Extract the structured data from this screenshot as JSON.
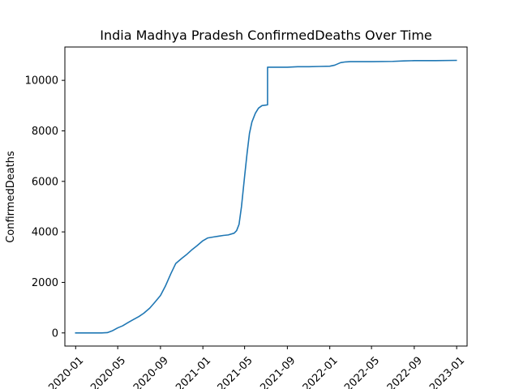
{
  "chart_data": {
    "type": "line",
    "title": "India Madhya Pradesh ConfirmedDeaths Over Time",
    "xlabel": "",
    "ylabel": "ConfirmedDeaths",
    "xlim": [
      "2019-12-01",
      "2023-01-31"
    ],
    "ylim": [
      -520,
      11320
    ],
    "x_ticks": [
      "2020-01",
      "2020-05",
      "2020-09",
      "2021-01",
      "2021-05",
      "2021-09",
      "2022-01",
      "2022-05",
      "2022-09",
      "2023-01"
    ],
    "y_ticks": [
      0,
      2000,
      4000,
      6000,
      8000,
      10000
    ],
    "y_tick_labels": [
      "0",
      "2000",
      "4000",
      "6000",
      "8000",
      "10000"
    ],
    "grid": false,
    "series": [
      {
        "color": "#1f77b4",
        "x": [
          "2020-01-01",
          "2020-02-01",
          "2020-03-01",
          "2020-03-15",
          "2020-04-01",
          "2020-04-15",
          "2020-05-01",
          "2020-05-15",
          "2020-06-01",
          "2020-06-15",
          "2020-07-01",
          "2020-07-15",
          "2020-08-01",
          "2020-08-15",
          "2020-09-01",
          "2020-09-15",
          "2020-10-01",
          "2020-10-15",
          "2020-11-01",
          "2020-11-15",
          "2020-12-01",
          "2020-12-15",
          "2021-01-01",
          "2021-01-15",
          "2021-02-01",
          "2021-02-15",
          "2021-03-01",
          "2021-03-15",
          "2021-04-01",
          "2021-04-08",
          "2021-04-15",
          "2021-04-22",
          "2021-05-01",
          "2021-05-08",
          "2021-05-15",
          "2021-05-22",
          "2021-06-01",
          "2021-06-10",
          "2021-06-20",
          "2021-07-01",
          "2021-07-06",
          "2021-07-06",
          "2021-08-01",
          "2021-09-01",
          "2021-10-01",
          "2021-11-01",
          "2021-12-01",
          "2022-01-01",
          "2022-01-15",
          "2022-02-01",
          "2022-02-15",
          "2022-03-01",
          "2022-05-01",
          "2022-07-01",
          "2022-08-01",
          "2022-09-01",
          "2022-11-01",
          "2022-12-31"
        ],
        "values": [
          0,
          0,
          0,
          0,
          10,
          80,
          200,
          280,
          420,
          530,
          650,
          780,
          980,
          1200,
          1480,
          1850,
          2350,
          2750,
          2950,
          3100,
          3300,
          3450,
          3650,
          3760,
          3800,
          3830,
          3860,
          3880,
          3950,
          4050,
          4300,
          5000,
          6200,
          7100,
          7900,
          8350,
          8700,
          8900,
          9000,
          9020,
          9030,
          10520,
          10520,
          10520,
          10540,
          10540,
          10550,
          10560,
          10600,
          10700,
          10730,
          10740,
          10740,
          10750,
          10770,
          10780,
          10780,
          10790
        ]
      }
    ]
  }
}
